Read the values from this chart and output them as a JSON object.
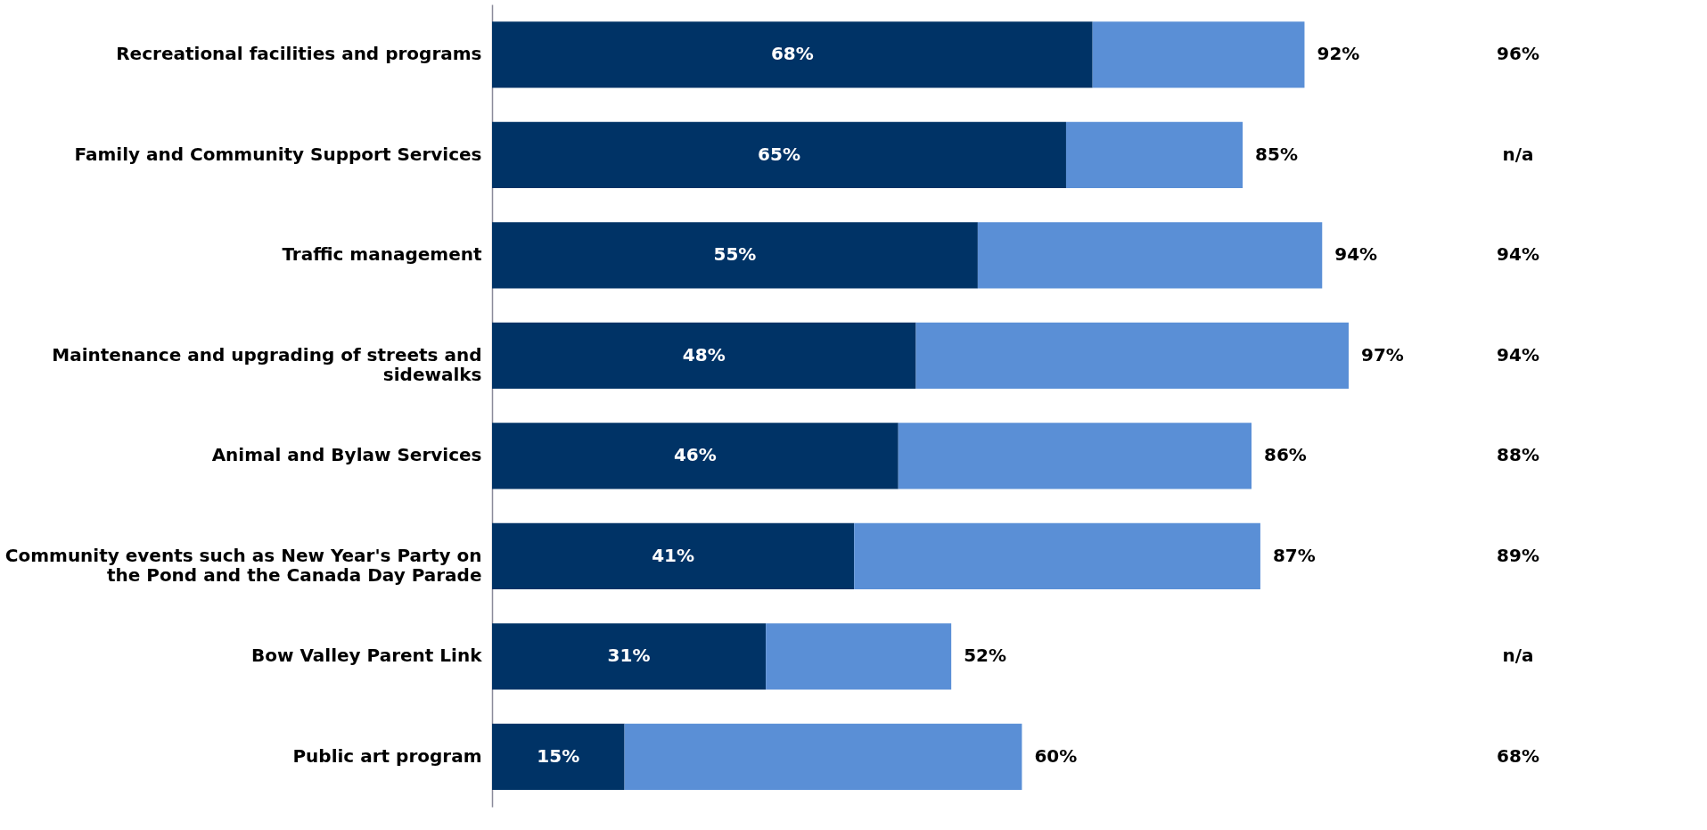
{
  "chart_data": {
    "type": "bar",
    "orientation": "horizontal",
    "stacked": true,
    "categories": [
      "Recreational facilities and programs",
      "Family and Community Support Services",
      "Traffic management",
      "Maintenance and upgrading of streets and sidewalks",
      "Animal and Bylaw Services",
      "Community events such as New Year's Party on the Pond and the Canada Day Parade",
      "Bow Valley Parent Link",
      "Public art program"
    ],
    "series": [
      {
        "color": "#003366",
        "values": [
          68,
          65,
          55,
          48,
          46,
          41,
          31,
          15
        ],
        "value_labels": [
          "68%",
          "65%",
          "55%",
          "48%",
          "46%",
          "41%",
          "31%",
          "15%"
        ]
      },
      {
        "color": "#5a8fd6",
        "values": [
          24,
          20,
          39,
          49,
          40,
          46,
          21,
          45
        ],
        "value_labels": [
          null,
          null,
          null,
          null,
          null,
          null,
          null,
          null
        ]
      }
    ],
    "totals": [
      "92%",
      "85%",
      "94%",
      "97%",
      "86%",
      "87%",
      "52%",
      "60%"
    ],
    "tick_labels": "y",
    "annotations": [
      "96%",
      "n/a",
      "94%",
      "94%",
      "88%",
      "89%",
      "n/a",
      "68%"
    ]
  }
}
